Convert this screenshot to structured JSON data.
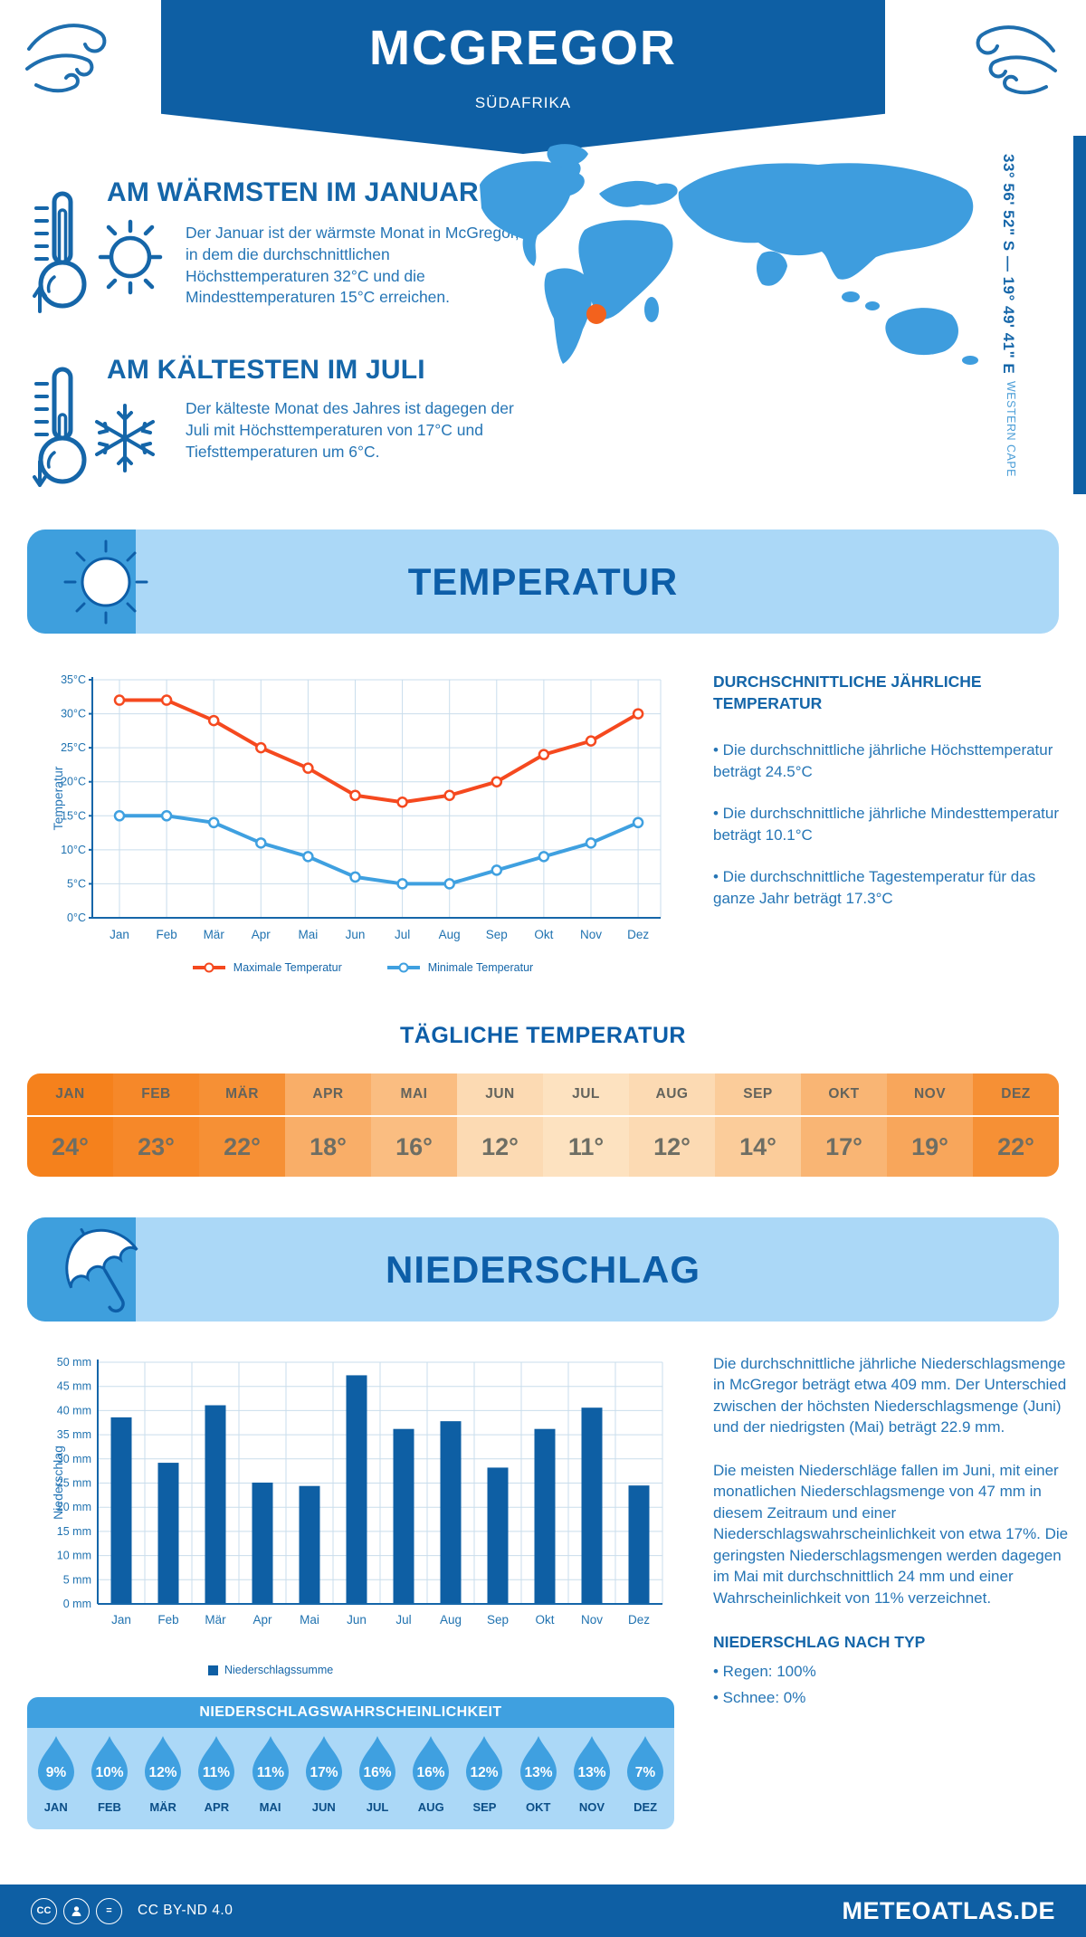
{
  "header": {
    "title": "MCGREGOR",
    "subtitle": "SÜDAFRIKA"
  },
  "geo": {
    "coordinates": "33° 56' 52\" S — 19° 49' 41\" E",
    "region": "WESTERN CAPE"
  },
  "warmest": {
    "title": "AM WÄRMSTEN IM JANUAR",
    "text": "Der Januar ist der wärmste Monat in McGregor, in dem die durchschnittlichen Höchsttemperaturen 32°C und die Mindesttemperaturen 15°C erreichen."
  },
  "coldest": {
    "title": "AM KÄLTESTEN IM JULI",
    "text": "Der kälteste Monat des Jahres ist dagegen der Juli mit Höchsttemperaturen von 17°C und Tiefsttemperaturen um 6°C."
  },
  "temperature_section": {
    "banner_title": "TEMPERATUR",
    "annual_heading": "DURCHSCHNITTLICHE JÄHRLICHE TEMPERATUR",
    "annual_bullets": [
      "• Die durchschnittliche jährliche Höchsttemperatur beträgt 24.5°C",
      "• Die durchschnittliche jährliche Mindesttemperatur beträgt 10.1°C",
      "• Die durchschnittliche Tagestemperatur für das ganze Jahr beträgt 17.3°C"
    ],
    "daily": {
      "title": "TÄGLICHE TEMPERATUR",
      "months": [
        "JAN",
        "FEB",
        "MÄR",
        "APR",
        "MAI",
        "JUN",
        "JUL",
        "AUG",
        "SEP",
        "OKT",
        "NOV",
        "DEZ"
      ],
      "values": [
        "24°",
        "23°",
        "22°",
        "18°",
        "16°",
        "12°",
        "11°",
        "12°",
        "14°",
        "17°",
        "19°",
        "22°"
      ],
      "cell_colors": [
        "#F5811C",
        "#F68829",
        "#F69035",
        "#F9AE68",
        "#FABD81",
        "#FCDAB3",
        "#FDE2C0",
        "#FCDAB3",
        "#FBCC9A",
        "#F9B574",
        "#F8A65B",
        "#F69035"
      ]
    }
  },
  "precipitation_section": {
    "banner_title": "NIEDERSCHLAG",
    "paragraphs": [
      "Die durchschnittliche jährliche Niederschlagsmenge in McGregor beträgt etwa 409 mm. Der Unterschied zwischen der höchsten Niederschlagsmenge (Juni) und der niedrigsten (Mai) beträgt 22.9 mm.",
      "Die meisten Niederschläge fallen im Juni, mit einer monatlichen Niederschlagsmenge von 47 mm in diesem Zeitraum und einer Niederschlagswahrscheinlichkeit von etwa 17%. Die geringsten Niederschlagsmengen werden dagegen im Mai mit durchschnittlich 24 mm und einer Wahrscheinlichkeit von 11% verzeichnet."
    ],
    "by_type_heading": "NIEDERSCHLAG NACH TYP",
    "by_type_bullets": [
      "• Regen: 100%",
      "• Schnee: 0%"
    ],
    "probability": {
      "title": "NIEDERSCHLAGSWAHRSCHEINLICHKEIT",
      "months": [
        "JAN",
        "FEB",
        "MÄR",
        "APR",
        "MAI",
        "JUN",
        "JUL",
        "AUG",
        "SEP",
        "OKT",
        "NOV",
        "DEZ"
      ],
      "values": [
        "9%",
        "10%",
        "12%",
        "11%",
        "11%",
        "17%",
        "16%",
        "16%",
        "12%",
        "13%",
        "13%",
        "7%"
      ]
    }
  },
  "footer": {
    "license": "CC BY-ND 4.0",
    "brand": "METEOATLAS.DE"
  },
  "colors": {
    "dark_blue": "#0E5FA4",
    "heading_blue": "#1566A9",
    "body_blue": "#2575B5",
    "mid_blue": "#3FA0E0",
    "panel_light_blue": "#ABD8F7",
    "grid": "#C9DDEC",
    "max_line": "#F5491F",
    "min_line": "#3FA0E0",
    "marker_orange": "#F3621D"
  },
  "chart_data": [
    {
      "type": "line",
      "x": [
        "Jan",
        "Feb",
        "Mär",
        "Apr",
        "Mai",
        "Jun",
        "Jul",
        "Aug",
        "Sep",
        "Okt",
        "Nov",
        "Dez"
      ],
      "series": [
        {
          "name": "Maximale Temperatur",
          "color": "#F5491F",
          "values": [
            32,
            32,
            29,
            25,
            22,
            18,
            17,
            18,
            20,
            24,
            26,
            30
          ]
        },
        {
          "name": "Minimale Temperatur",
          "color": "#3FA0E0",
          "values": [
            15,
            15,
            14,
            11,
            9,
            6,
            5,
            5,
            7,
            9,
            11,
            14
          ]
        }
      ],
      "ylabel": "Temperatur",
      "ylim": [
        0,
        35
      ],
      "ytick_step": 5,
      "ytick_suffix": "°C",
      "grid": true,
      "legend_position": "bottom"
    },
    {
      "type": "bar",
      "categories": [
        "Jan",
        "Feb",
        "Mär",
        "Apr",
        "Mai",
        "Jun",
        "Jul",
        "Aug",
        "Sep",
        "Okt",
        "Nov",
        "Dez"
      ],
      "values": [
        38.6,
        29.2,
        41.1,
        25.1,
        24.4,
        47.3,
        36.2,
        37.8,
        28.2,
        36.2,
        40.6,
        24.5
      ],
      "ylabel": "Niederschlag",
      "ylim": [
        0,
        50
      ],
      "ytick_step": 5,
      "ytick_suffix": " mm",
      "bar_color": "#0E5FA4",
      "legend": "Niederschlagssumme",
      "grid": true
    }
  ]
}
